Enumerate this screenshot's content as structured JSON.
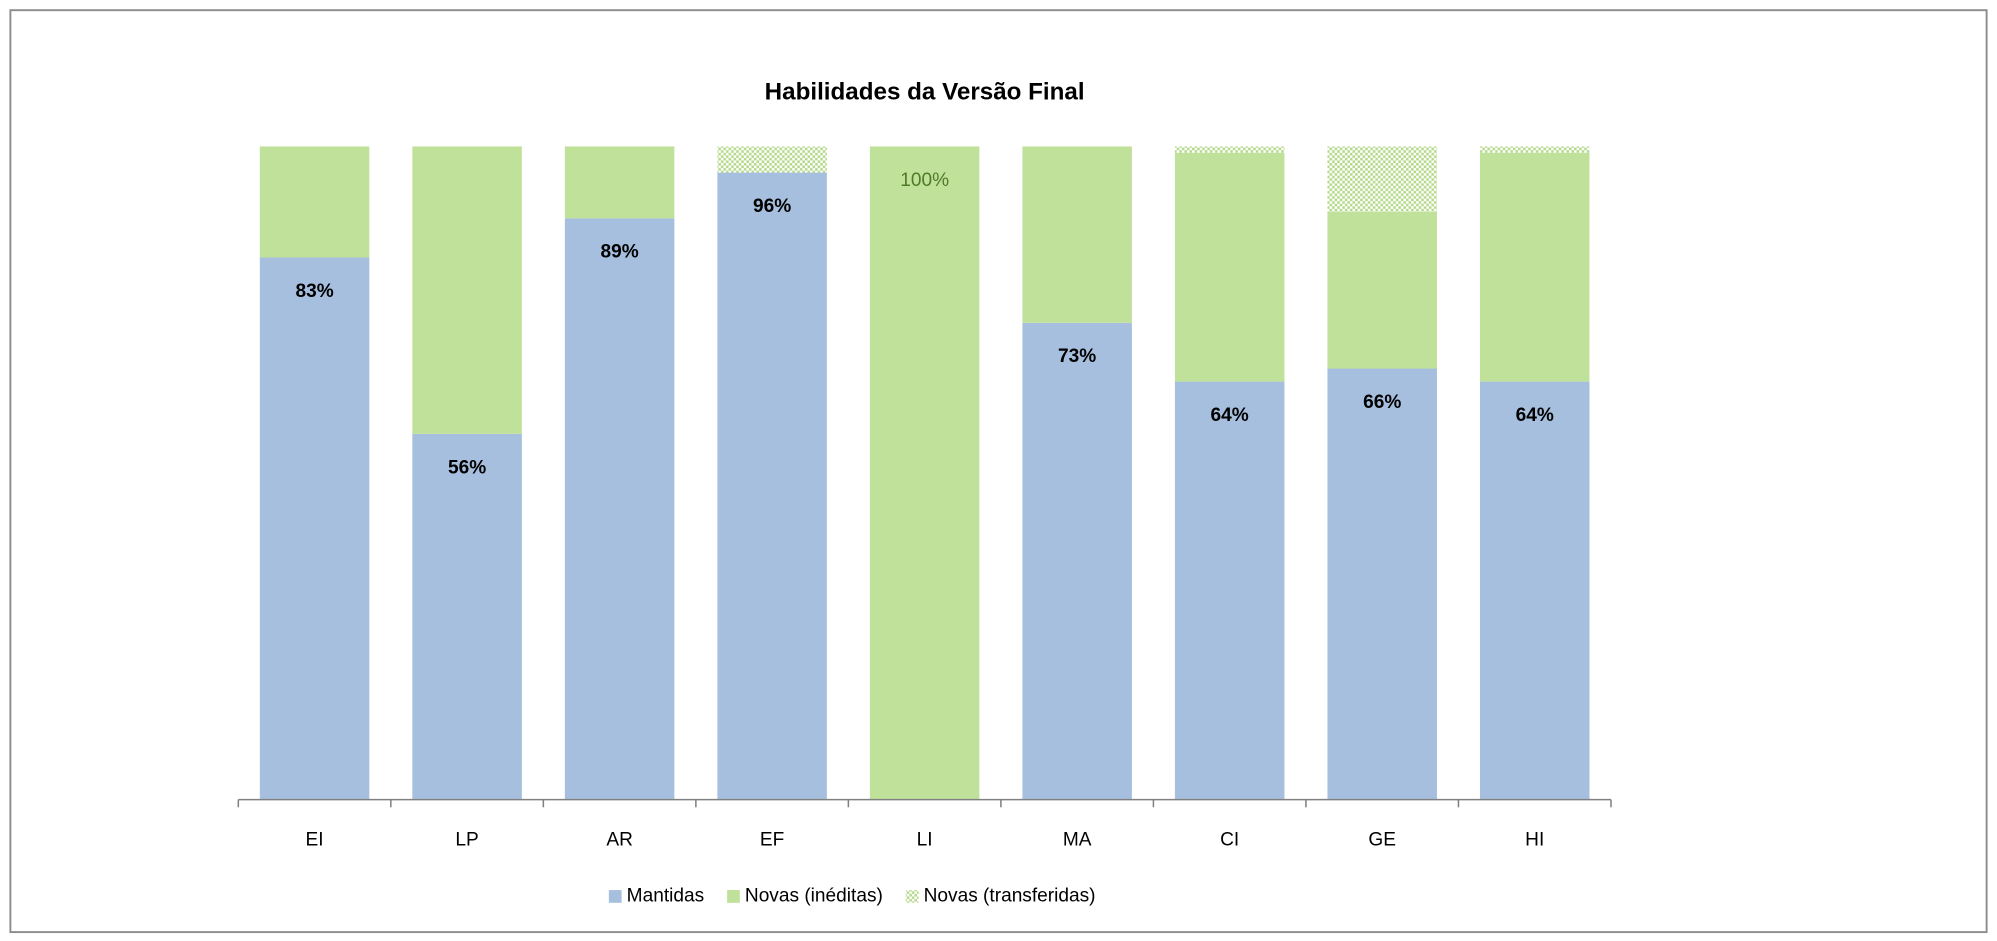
{
  "chart_data": {
    "type": "stacked-bar-100",
    "title": "Habilidades da Versão Final",
    "categories": [
      "EI",
      "LP",
      "AR",
      "EF",
      "LI",
      "MA",
      "CI",
      "GE",
      "HI"
    ],
    "ylim": [
      0,
      100
    ],
    "legend": "bottom",
    "series": [
      {
        "name": "Mantidas",
        "color": "#a7bfde",
        "values": [
          83,
          56,
          89,
          96,
          0,
          73,
          64,
          66,
          64
        ],
        "value_labels": [
          "83%",
          "56%",
          "89%",
          "96%",
          null,
          "73%",
          "64%",
          "66%",
          "64%"
        ]
      },
      {
        "name": "Novas (inéditas)",
        "color": "#c0e19a",
        "values": [
          17,
          44,
          11,
          0,
          100,
          27,
          35,
          24,
          35
        ],
        "value_labels": [
          null,
          null,
          null,
          null,
          "100%",
          null,
          null,
          null,
          null
        ]
      },
      {
        "name": "Novas (transferidas)",
        "color": "#b5d98b",
        "pattern": "dots",
        "values": [
          0,
          0,
          0,
          4,
          0,
          0,
          1,
          10,
          1
        ]
      }
    ]
  }
}
